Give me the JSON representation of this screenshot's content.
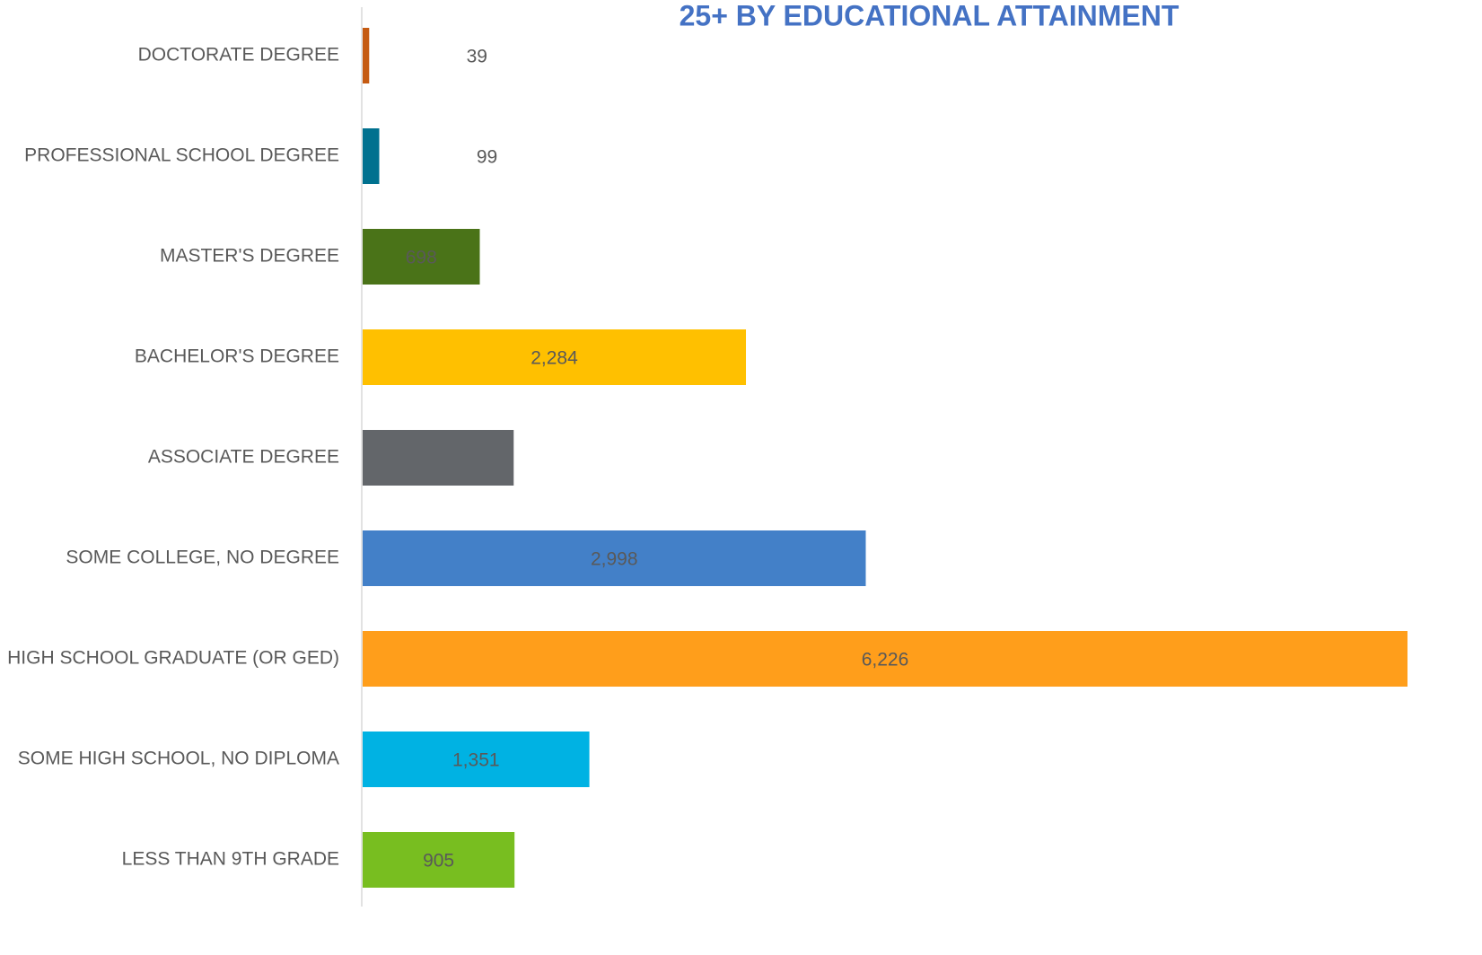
{
  "chart_data": {
    "type": "bar",
    "orientation": "horizontal",
    "title": "25+ BY EDUCATIONAL ATTAINMENT",
    "categories": [
      "DOCTORATE DEGREE",
      "PROFESSIONAL SCHOOL DEGREE",
      "MASTER'S DEGREE",
      "BACHELOR'S DEGREE",
      "ASSOCIATE DEGREE",
      "SOME COLLEGE, NO DEGREE",
      "HIGH SCHOOL GRADUATE (OR GED)",
      "SOME HIGH SCHOOL, NO DIPLOMA",
      "LESS THAN 9TH GRADE"
    ],
    "values": [
      39,
      99,
      698,
      2284,
      900,
      2998,
      6226,
      1351,
      905
    ],
    "value_labels": [
      "39",
      "99",
      "698",
      "2,284",
      null,
      "2,998",
      "6,226",
      "1,351",
      "905"
    ],
    "colors": [
      "#c55a11",
      "#00718f",
      "#4a7318",
      "#ffc000",
      "#63666a",
      "#4380c8",
      "#ff9e1b",
      "#00b2e3",
      "#78be20"
    ]
  }
}
